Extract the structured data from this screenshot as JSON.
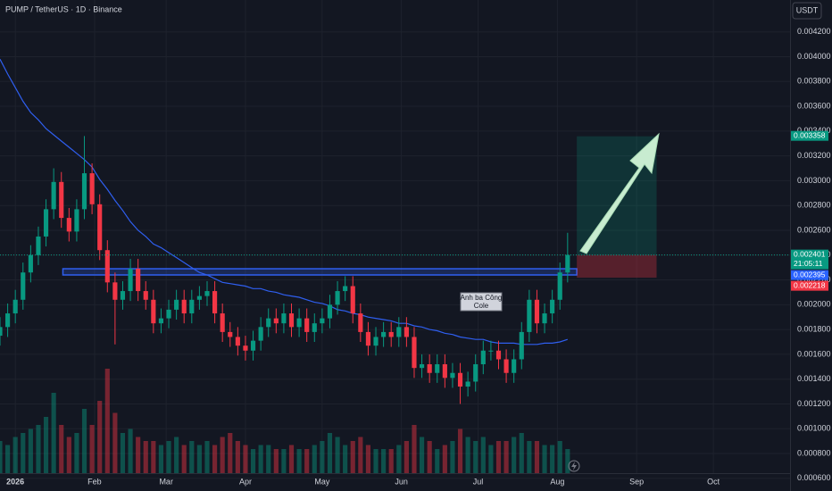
{
  "chart_data": {
    "type": "candlestick",
    "title": "PUMP / TetherUS · 1D · Binance",
    "currency": "USDT",
    "up_color": "#089981",
    "down_color": "#f23645",
    "ma_color": "#2f5ff0",
    "grid": true,
    "xlim": [
      0,
      103
    ],
    "ylim": [
      0.000498,
      0.004457
    ],
    "xticks": [
      {
        "value": 2,
        "label": "2026"
      },
      {
        "value": 12.33,
        "label": "Feb"
      },
      {
        "value": 21.67,
        "label": "Mar"
      },
      {
        "value": 32,
        "label": "Apr"
      },
      {
        "value": 42,
        "label": "May"
      },
      {
        "value": 52.33,
        "label": "Jun"
      },
      {
        "value": 62.33,
        "label": "Jul"
      },
      {
        "value": 72.67,
        "label": "Aug"
      },
      {
        "value": 83,
        "label": "Sep"
      },
      {
        "value": 93,
        "label": "Oct"
      }
    ],
    "yticks": [
      {
        "value": 0.0006,
        "label": "0.000600"
      },
      {
        "value": 0.0008,
        "label": "0.000800"
      },
      {
        "value": 0.001,
        "label": "0.001000"
      },
      {
        "value": 0.0012,
        "label": "0.001200"
      },
      {
        "value": 0.0014,
        "label": "0.001400"
      },
      {
        "value": 0.0016,
        "label": "0.001600"
      },
      {
        "value": 0.0018,
        "label": "0.001800"
      },
      {
        "value": 0.002,
        "label": "0.002000"
      },
      {
        "value": 0.0022,
        "label": "0.002200"
      },
      {
        "value": 0.0024,
        "label": "0.002400"
      },
      {
        "value": 0.0026,
        "label": "0.002600"
      },
      {
        "value": 0.0028,
        "label": "0.002800"
      },
      {
        "value": 0.003,
        "label": "0.003000"
      },
      {
        "value": 0.0032,
        "label": "0.003200"
      },
      {
        "value": 0.0034,
        "label": "0.003400"
      },
      {
        "value": 0.0036,
        "label": "0.003600"
      },
      {
        "value": 0.0038,
        "label": "0.003800"
      },
      {
        "value": 0.004,
        "label": "0.004000"
      },
      {
        "value": 0.0042,
        "label": "0.004200"
      }
    ],
    "open": [
      0.00175,
      0.00182,
      0.00193,
      0.00204,
      0.00226,
      0.0024,
      0.00255,
      0.00277,
      0.00299,
      0.0027,
      0.00259,
      0.00277,
      0.00306,
      0.00281,
      0.00244,
      0.00218,
      0.00204,
      0.00211,
      0.00229,
      0.00211,
      0.00204,
      0.00185,
      0.00189,
      0.00196,
      0.00204,
      0.00193,
      0.00204,
      0.00207,
      0.00211,
      0.00193,
      0.00178,
      0.00174,
      0.00167,
      0.00163,
      0.00171,
      0.00182,
      0.00189,
      0.00185,
      0.00193,
      0.00182,
      0.00189,
      0.00178,
      0.00185,
      0.00189,
      0.002,
      0.00211,
      0.00215,
      0.00193,
      0.00178,
      0.00167,
      0.00174,
      0.00178,
      0.00174,
      0.00182,
      0.00174,
      0.00149,
      0.00152,
      0.00145,
      0.00152,
      0.00141,
      0.00145,
      0.00134,
      0.00138,
      0.00152,
      0.00163,
      0.00163,
      0.00156,
      0.00145,
      0.00156,
      0.00178,
      0.00204,
      0.00185,
      0.00193,
      0.00204,
      0.00226
    ],
    "high": [
      0.0019,
      0.00201,
      0.00212,
      0.00234,
      0.00248,
      0.00263,
      0.00285,
      0.0031,
      0.00307,
      0.00278,
      0.00285,
      0.00336,
      0.00314,
      0.00289,
      0.00252,
      0.00226,
      0.00219,
      0.00237,
      0.00237,
      0.00219,
      0.00212,
      0.00197,
      0.00204,
      0.00212,
      0.00212,
      0.00212,
      0.00215,
      0.00219,
      0.00219,
      0.00201,
      0.00186,
      0.00182,
      0.00175,
      0.00179,
      0.0019,
      0.00197,
      0.00197,
      0.00201,
      0.00201,
      0.00197,
      0.00197,
      0.00193,
      0.00197,
      0.00208,
      0.00219,
      0.00223,
      0.00223,
      0.00201,
      0.00186,
      0.00182,
      0.00186,
      0.00186,
      0.0019,
      0.0019,
      0.00182,
      0.0016,
      0.0016,
      0.0016,
      0.0016,
      0.00153,
      0.00153,
      0.00146,
      0.0016,
      0.00171,
      0.00171,
      0.00171,
      0.00164,
      0.00164,
      0.00186,
      0.00212,
      0.00212,
      0.00201,
      0.00212,
      0.00234,
      0.00258
    ],
    "low": [
      0.00167,
      0.00174,
      0.00185,
      0.00196,
      0.00218,
      0.00232,
      0.00247,
      0.00269,
      0.00262,
      0.00251,
      0.00251,
      0.00269,
      0.00273,
      0.00236,
      0.0021,
      0.00168,
      0.00196,
      0.00203,
      0.00203,
      0.00196,
      0.00177,
      0.00177,
      0.00181,
      0.00188,
      0.00185,
      0.00185,
      0.00196,
      0.00199,
      0.00185,
      0.0017,
      0.00166,
      0.00159,
      0.00155,
      0.00155,
      0.00163,
      0.00174,
      0.00177,
      0.00177,
      0.00174,
      0.00174,
      0.0017,
      0.0017,
      0.00177,
      0.00181,
      0.00192,
      0.00203,
      0.00185,
      0.0017,
      0.00159,
      0.00159,
      0.00166,
      0.00166,
      0.00166,
      0.00166,
      0.00141,
      0.00141,
      0.00137,
      0.00137,
      0.00133,
      0.00133,
      0.0012,
      0.00126,
      0.0013,
      0.00144,
      0.00155,
      0.00148,
      0.00137,
      0.00137,
      0.00148,
      0.0017,
      0.00177,
      0.00177,
      0.00185,
      0.00196,
      0.00218
    ],
    "close": [
      0.00182,
      0.00193,
      0.00204,
      0.00226,
      0.0024,
      0.00255,
      0.00277,
      0.00299,
      0.0027,
      0.00259,
      0.00277,
      0.00306,
      0.00281,
      0.00244,
      0.00218,
      0.00204,
      0.00211,
      0.00229,
      0.00211,
      0.00204,
      0.00185,
      0.00189,
      0.00196,
      0.00204,
      0.00193,
      0.00204,
      0.00207,
      0.00211,
      0.00193,
      0.00178,
      0.00174,
      0.00167,
      0.00163,
      0.00171,
      0.00182,
      0.00189,
      0.00185,
      0.00193,
      0.00182,
      0.00189,
      0.00178,
      0.00185,
      0.00189,
      0.002,
      0.00211,
      0.00215,
      0.00193,
      0.00178,
      0.00167,
      0.00174,
      0.00178,
      0.00174,
      0.00182,
      0.00174,
      0.00149,
      0.00152,
      0.00145,
      0.00152,
      0.00141,
      0.00145,
      0.00134,
      0.00138,
      0.00152,
      0.00163,
      0.00163,
      0.00156,
      0.00145,
      0.00156,
      0.00178,
      0.00204,
      0.00185,
      0.00193,
      0.00204,
      0.00226,
      0.002401
    ],
    "volume": [
      40,
      35,
      45,
      50,
      55,
      60,
      70,
      100,
      60,
      45,
      50,
      80,
      60,
      90,
      130,
      75,
      50,
      55,
      45,
      40,
      40,
      35,
      40,
      45,
      35,
      40,
      35,
      40,
      35,
      45,
      50,
      40,
      35,
      30,
      35,
      35,
      30,
      30,
      35,
      30,
      30,
      35,
      40,
      50,
      45,
      35,
      40,
      45,
      35,
      30,
      30,
      30,
      35,
      40,
      60,
      45,
      40,
      30,
      35,
      40,
      55,
      45,
      40,
      45,
      35,
      40,
      40,
      45,
      50,
      40,
      40,
      35,
      35,
      40,
      30
    ],
    "ma": [
      0.00398,
      0.00386,
      0.00375,
      0.00364,
      0.00355,
      0.00349,
      0.00342,
      0.00337,
      0.00332,
      0.00327,
      0.00322,
      0.00317,
      0.00311,
      0.00301,
      0.00293,
      0.00284,
      0.00276,
      0.00267,
      0.0026,
      0.00255,
      0.00249,
      0.00246,
      0.00242,
      0.00238,
      0.00234,
      0.0023,
      0.00226,
      0.00224,
      0.00221,
      0.00218,
      0.00217,
      0.00216,
      0.00215,
      0.00213,
      0.00213,
      0.00211,
      0.0021,
      0.00208,
      0.00207,
      0.00206,
      0.00204,
      0.00202,
      0.00201,
      0.00199,
      0.00196,
      0.00195,
      0.00193,
      0.00192,
      0.0019,
      0.00189,
      0.00188,
      0.00187,
      0.00185,
      0.00185,
      0.00183,
      0.00182,
      0.0018,
      0.00179,
      0.00177,
      0.00176,
      0.00174,
      0.00173,
      0.00172,
      0.00172,
      0.0017,
      0.00169,
      0.00169,
      0.00169,
      0.00168,
      0.00168,
      0.00168,
      0.00169,
      0.00169,
      0.0017,
      0.00172
    ],
    "zone": {
      "top": 0.00229,
      "bottom": 0.00224,
      "from": 8.2,
      "to": 75.2,
      "color": "#2f5ff0"
    },
    "position": {
      "entry": 0.002401,
      "target": 0.003358,
      "stop": 0.002218,
      "from": 75.2,
      "to": 85.6
    },
    "marker_level": {
      "value": 0.002395,
      "color": "#2962ff"
    },
    "countdown": "21:05:11",
    "note": [
      "Anh ba Công",
      "Cole"
    ]
  }
}
